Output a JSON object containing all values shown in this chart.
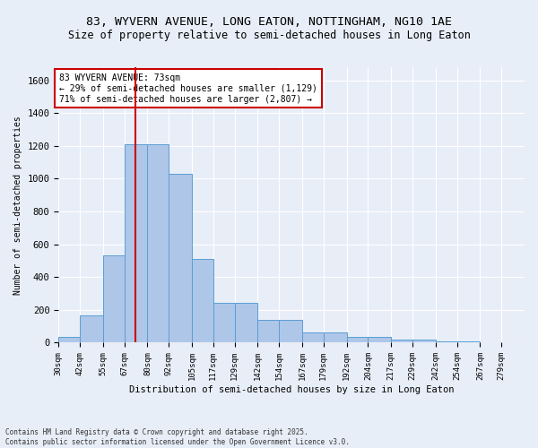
{
  "title_line1": "83, WYVERN AVENUE, LONG EATON, NOTTINGHAM, NG10 1AE",
  "title_line2": "Size of property relative to semi-detached houses in Long Eaton",
  "xlabel": "Distribution of semi-detached houses by size in Long Eaton",
  "ylabel": "Number of semi-detached properties",
  "footnote1": "Contains HM Land Registry data © Crown copyright and database right 2025.",
  "footnote2": "Contains public sector information licensed under the Open Government Licence v3.0.",
  "bin_labels": [
    "30sqm",
    "42sqm",
    "55sqm",
    "67sqm",
    "80sqm",
    "92sqm",
    "105sqm",
    "117sqm",
    "129sqm",
    "142sqm",
    "154sqm",
    "167sqm",
    "179sqm",
    "192sqm",
    "204sqm",
    "217sqm",
    "229sqm",
    "242sqm",
    "254sqm",
    "267sqm",
    "279sqm"
  ],
  "bin_edges": [
    30,
    42,
    55,
    67,
    80,
    92,
    105,
    117,
    129,
    142,
    154,
    167,
    179,
    192,
    204,
    217,
    229,
    242,
    254,
    267,
    279
  ],
  "bar_heights": [
    35,
    165,
    530,
    1210,
    1210,
    1030,
    510,
    245,
    245,
    140,
    140,
    60,
    60,
    35,
    35,
    20,
    20,
    10,
    10,
    5,
    5
  ],
  "bar_color": "#aec6e8",
  "bar_edge_color": "#5a9fd4",
  "property_size": 73,
  "property_line_color": "#cc0000",
  "annotation_title": "83 WYVERN AVENUE: 73sqm",
  "annotation_line1": "← 29% of semi-detached houses are smaller (1,129)",
  "annotation_line2": "71% of semi-detached houses are larger (2,807) →",
  "annotation_box_color": "#cc0000",
  "ylim": [
    0,
    1680
  ],
  "yticks": [
    0,
    200,
    400,
    600,
    800,
    1000,
    1200,
    1400,
    1600
  ],
  "background_color": "#e8eef8",
  "grid_color": "#ffffff",
  "title_fontsize": 9.5,
  "subtitle_fontsize": 8.5
}
